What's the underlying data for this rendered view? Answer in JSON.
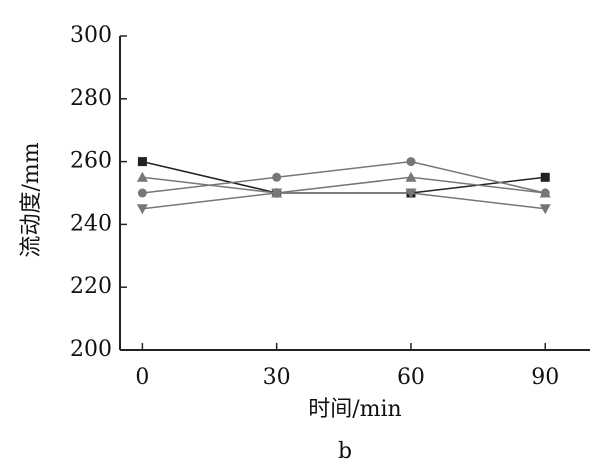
{
  "chart_data": {
    "type": "line",
    "x": [
      0,
      30,
      60,
      90
    ],
    "xlim": [
      -5,
      100
    ],
    "xticks": [
      0,
      30,
      60,
      90
    ],
    "ylim": [
      200,
      300
    ],
    "yticks": [
      200,
      220,
      240,
      260,
      280,
      300
    ],
    "xlabel": "时间/min",
    "ylabel": "流动度/mm",
    "caption": "b",
    "series": [
      {
        "marker": "square",
        "color": "#222222",
        "values": [
          260,
          250,
          250,
          255
        ]
      },
      {
        "marker": "circle",
        "color": "#777777",
        "values": [
          250,
          255,
          260,
          250
        ]
      },
      {
        "marker": "triangle-up",
        "color": "#777777",
        "values": [
          255,
          250,
          255,
          250
        ]
      },
      {
        "marker": "triangle-down",
        "color": "#777777",
        "values": [
          245,
          250,
          250,
          245
        ]
      }
    ]
  }
}
